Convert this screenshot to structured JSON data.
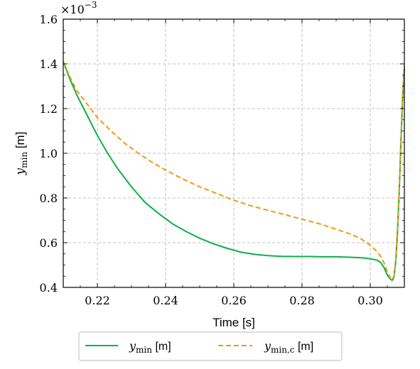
{
  "chart_data": {
    "type": "line",
    "xlabel": "Time [s]",
    "ylabel": {
      "main": "y",
      "sub": "min",
      "unit": " [m]"
    },
    "y_multiplier": {
      "base": "×10",
      "exponent": "−3"
    },
    "xlim": [
      0.21,
      0.31
    ],
    "ylim": [
      0.4,
      1.6
    ],
    "x_ticks": [
      0.22,
      0.24,
      0.26,
      0.28,
      0.3
    ],
    "x_tick_labels": [
      "0.22",
      "0.24",
      "0.26",
      "0.28",
      "0.30"
    ],
    "y_ticks": [
      0.4,
      0.6,
      0.8,
      1.0,
      1.2,
      1.4,
      1.6
    ],
    "y_tick_labels": [
      "0.4",
      "0.6",
      "0.8",
      "1.0",
      "1.2",
      "1.4",
      "1.6"
    ],
    "grid": true,
    "legend_position": "below-center",
    "series": [
      {
        "legend": {
          "main": "y",
          "sub": "min",
          "unit": " [m]"
        },
        "color": "#0bb14a",
        "style": "solid",
        "x": [
          0.21,
          0.212,
          0.214,
          0.216,
          0.218,
          0.22,
          0.223,
          0.226,
          0.23,
          0.234,
          0.238,
          0.242,
          0.246,
          0.25,
          0.254,
          0.258,
          0.262,
          0.266,
          0.27,
          0.274,
          0.278,
          0.282,
          0.286,
          0.29,
          0.294,
          0.298,
          0.3,
          0.302,
          0.303,
          0.304,
          0.305,
          0.306,
          0.3065,
          0.307,
          0.3075,
          0.308,
          0.3085,
          0.309,
          0.3095,
          0.31
        ],
        "y": [
          1.41,
          1.33,
          1.26,
          1.2,
          1.14,
          1.08,
          1.0,
          0.93,
          0.85,
          0.78,
          0.73,
          0.685,
          0.65,
          0.62,
          0.595,
          0.575,
          0.558,
          0.548,
          0.542,
          0.539,
          0.538,
          0.538,
          0.537,
          0.537,
          0.535,
          0.532,
          0.528,
          0.522,
          0.512,
          0.49,
          0.455,
          0.435,
          0.432,
          0.45,
          0.52,
          0.65,
          0.83,
          1.05,
          1.25,
          1.38
        ]
      },
      {
        "legend": {
          "main": "y",
          "sub": "min,c",
          "unit": " [m]"
        },
        "color": "#f5980e",
        "style": "dashed",
        "x": [
          0.21,
          0.212,
          0.214,
          0.216,
          0.218,
          0.22,
          0.224,
          0.228,
          0.232,
          0.236,
          0.24,
          0.245,
          0.25,
          0.255,
          0.26,
          0.265,
          0.27,
          0.275,
          0.28,
          0.285,
          0.29,
          0.294,
          0.297,
          0.299,
          0.301,
          0.302,
          0.303,
          0.304,
          0.305,
          0.306,
          0.3065,
          0.307,
          0.3075,
          0.308,
          0.3085,
          0.309,
          0.3095,
          0.31
        ],
        "y": [
          1.41,
          1.34,
          1.28,
          1.24,
          1.2,
          1.16,
          1.1,
          1.045,
          1.0,
          0.96,
          0.925,
          0.885,
          0.85,
          0.82,
          0.79,
          0.765,
          0.745,
          0.725,
          0.705,
          0.685,
          0.66,
          0.64,
          0.62,
          0.6,
          0.575,
          0.56,
          0.54,
          0.51,
          0.47,
          0.44,
          0.438,
          0.455,
          0.53,
          0.67,
          0.85,
          1.07,
          1.27,
          1.39
        ]
      }
    ]
  }
}
